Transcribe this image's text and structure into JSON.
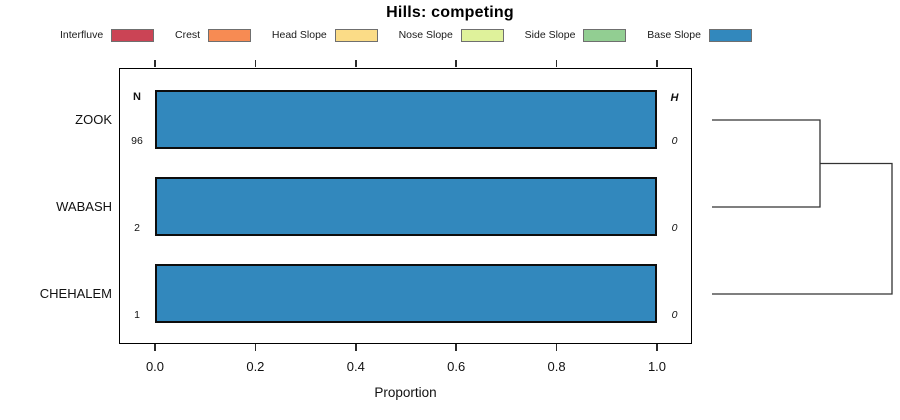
{
  "title": "Hills: competing",
  "legend": {
    "items": [
      {
        "label": "Interfluve",
        "color": "#CB4455"
      },
      {
        "label": "Crest",
        "color": "#F78B53"
      },
      {
        "label": "Head Slope",
        "color": "#FBDC87"
      },
      {
        "label": "Nose Slope",
        "color": "#DFF29B"
      },
      {
        "label": "Side Slope",
        "color": "#92CE92"
      },
      {
        "label": "Base Slope",
        "color": "#3288BD"
      }
    ]
  },
  "chart_data": {
    "type": "bar",
    "orientation": "horizontal",
    "stacked": true,
    "title": "Hills: competing",
    "categories": [
      "ZOOK",
      "WABASH",
      "CHEHALEM"
    ],
    "series": [
      {
        "name": "Interfluve",
        "color": "#CB4455",
        "values": [
          0,
          0,
          0
        ]
      },
      {
        "name": "Crest",
        "color": "#F78B53",
        "values": [
          0,
          0,
          0
        ]
      },
      {
        "name": "Head Slope",
        "color": "#FBDC87",
        "values": [
          0,
          0,
          0
        ]
      },
      {
        "name": "Nose Slope",
        "color": "#DFF29B",
        "values": [
          0,
          0,
          0
        ]
      },
      {
        "name": "Side Slope",
        "color": "#92CE92",
        "values": [
          0,
          0,
          0
        ]
      },
      {
        "name": "Base Slope",
        "color": "#3288BD",
        "values": [
          1.0,
          1.0,
          1.0
        ]
      }
    ],
    "n_header": "N",
    "n_values": [
      "96",
      "2",
      "1"
    ],
    "h_header": "H",
    "h_values": [
      "0",
      "0",
      "0"
    ],
    "xlabel": "Proportion",
    "x_ticks": [
      "0.0",
      "0.2",
      "0.4",
      "0.6",
      "0.8",
      "1.0"
    ],
    "xlim": [
      0.0,
      1.0
    ],
    "grid": false,
    "legend_position": "top",
    "dendrogram": {
      "structure": "((ZOOK,WABASH),CHEHALEM)",
      "leaf_order": [
        "ZOOK",
        "WABASH",
        "CHEHALEM"
      ],
      "join_positions_rel": [
        0.6,
        1.0
      ]
    }
  }
}
